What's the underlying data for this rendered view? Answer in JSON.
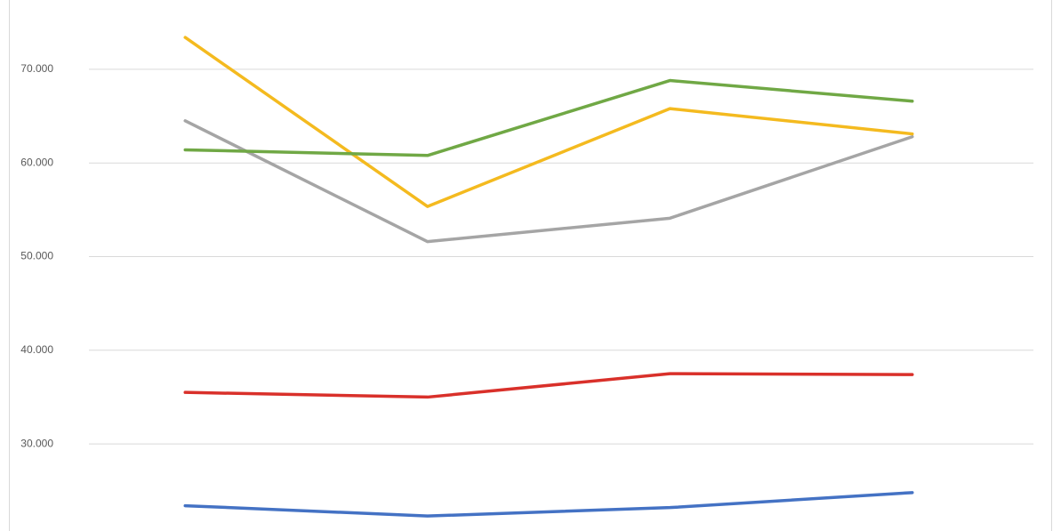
{
  "chart_data": {
    "type": "line",
    "categories": [
      null,
      null,
      null,
      null
    ],
    "series": [
      {
        "color": "#4472c4",
        "values": [
          23.4,
          22.3,
          23.2,
          24.8
        ]
      },
      {
        "color": "#d9302a",
        "values": [
          35.5,
          35.0,
          37.5,
          37.4
        ]
      },
      {
        "color": "#a5a5a5",
        "values": [
          64.5,
          51.6,
          54.1,
          62.8
        ]
      },
      {
        "color": "#f4ba1f",
        "values": [
          73.4,
          55.35,
          65.8,
          63.1
        ]
      },
      {
        "color": "#70a845",
        "values": [
          61.4,
          60.8,
          68.8,
          66.6
        ]
      }
    ],
    "ylim": [
      20.7,
      77.4
    ],
    "yticks": [
      {
        "value": 30,
        "label": "30.000"
      },
      {
        "value": 40,
        "label": "40.000"
      },
      {
        "value": 50,
        "label": "50.000"
      },
      {
        "value": 60,
        "label": "60.000"
      },
      {
        "value": 70,
        "label": "70.000"
      }
    ],
    "grid": true
  }
}
